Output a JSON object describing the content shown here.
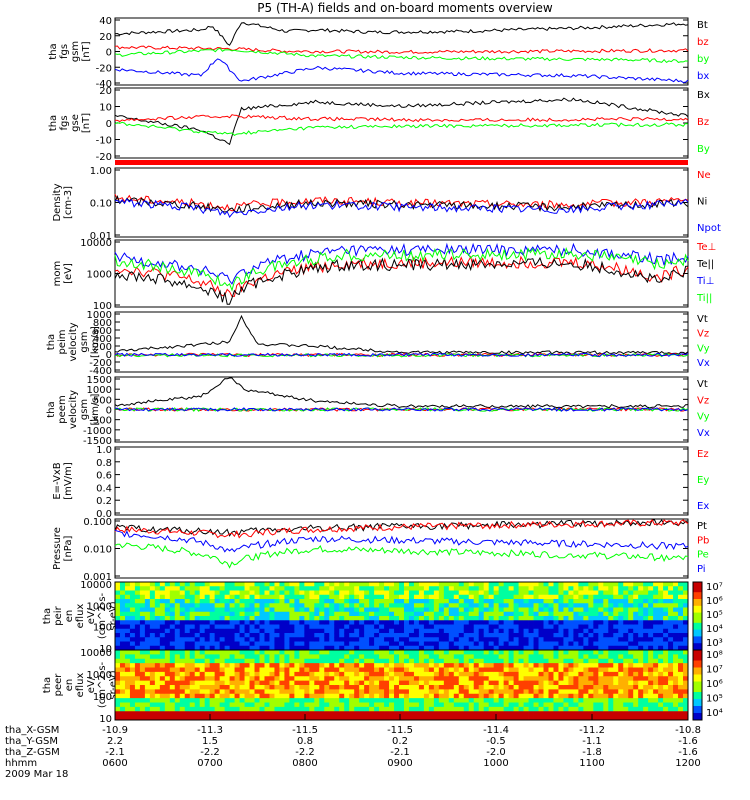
{
  "title": "P5 (TH-A) fields and on-board moments overview",
  "footer": {
    "rows": [
      {
        "label": "tha_X-GSM",
        "values": [
          "-10.9",
          "-11.3",
          "-11.5",
          "-11.5",
          "-11.4",
          "-11.2",
          "-10.8"
        ]
      },
      {
        "label": "tha_Y-GSM",
        "values": [
          "2.2",
          "1.5",
          "0.8",
          "0.2",
          "-0.5",
          "-1.1",
          "-1.6"
        ]
      },
      {
        "label": "tha_Z-GSM",
        "values": [
          "-2.1",
          "-2.2",
          "-2.2",
          "-2.1",
          "-2.0",
          "-1.8",
          "-1.6"
        ]
      },
      {
        "label": "hhmm",
        "values": [
          "0600",
          "0700",
          "0800",
          "0900",
          "1000",
          "1100",
          "1200"
        ]
      }
    ],
    "date": "2009 Mar 18"
  },
  "colors": {
    "black": "#000000",
    "red": "#ff0000",
    "green": "#00ff00",
    "blue": "#0000ff"
  },
  "chart_data": [
    {
      "type": "line",
      "ylabel": [
        "tha",
        "fgs",
        "gsm",
        "[nT]"
      ],
      "yticks": [
        "40",
        "20",
        "0",
        "-20",
        "-40"
      ],
      "ylim": [
        -40,
        45
      ],
      "series": [
        {
          "name": "Bt",
          "color": "#000000",
          "x": [
            0,
            0.15,
            0.17,
            0.2,
            0.22,
            0.3,
            0.35,
            0.45,
            0.6,
            0.8,
            0.9,
            1
          ],
          "y": [
            25,
            30,
            35,
            10,
            40,
            28,
            30,
            27,
            28,
            32,
            35,
            38
          ]
        },
        {
          "name": "bz",
          "color": "#ff0000",
          "x": [
            0,
            0.2,
            0.3,
            0.5,
            0.8,
            1
          ],
          "y": [
            8,
            6,
            3,
            2,
            3,
            4
          ]
        },
        {
          "name": "by",
          "color": "#00ff00",
          "x": [
            0,
            0.2,
            0.35,
            0.6,
            0.9,
            1
          ],
          "y": [
            -2,
            5,
            -3,
            -6,
            -8,
            -10
          ]
        },
        {
          "name": "bx",
          "color": "#0000ff",
          "x": [
            0,
            0.15,
            0.18,
            0.22,
            0.35,
            0.5,
            0.8,
            1
          ],
          "y": [
            -20,
            -28,
            -5,
            -35,
            -18,
            -25,
            -28,
            -35
          ]
        }
      ]
    },
    {
      "type": "line",
      "ylabel": [
        "tha",
        "fgs",
        "gse",
        "[nT]"
      ],
      "yticks": [
        "20",
        "10",
        "0",
        "-10",
        "-20"
      ],
      "ylim": [
        -25,
        25
      ],
      "series": [
        {
          "name": "Bx",
          "color": "#000000",
          "x": [
            0,
            0.15,
            0.2,
            0.22,
            0.35,
            0.5,
            0.8,
            1
          ],
          "y": [
            5,
            -5,
            -15,
            10,
            15,
            12,
            17,
            5
          ]
        },
        {
          "name": "Bz",
          "color": "#ff0000",
          "x": [
            0,
            0.2,
            0.35,
            0.6,
            1
          ],
          "y": [
            2,
            5,
            3,
            2,
            3
          ]
        },
        {
          "name": "By",
          "color": "#00ff00",
          "x": [
            0,
            0.2,
            0.35,
            0.6,
            1
          ],
          "y": [
            0,
            -8,
            -3,
            -2,
            -1
          ]
        }
      ]
    },
    {
      "type": "line",
      "ylabel": [
        "Density",
        "[cm-3]"
      ],
      "yticks": [
        "1.00",
        "0.10",
        "0.01"
      ],
      "log": true,
      "ylim": [
        0.01,
        10
      ],
      "series": [
        {
          "name": "Ne",
          "color": "#ff0000",
          "x": [
            0,
            0.2,
            0.35,
            0.5,
            0.8,
            1
          ],
          "y": [
            0.5,
            0.2,
            0.4,
            0.3,
            0.25,
            0.4
          ]
        },
        {
          "name": "Ni",
          "color": "#000000",
          "x": [
            0,
            0.2,
            0.35,
            0.5,
            0.8,
            1
          ],
          "y": [
            0.4,
            0.15,
            0.3,
            0.25,
            0.2,
            0.3
          ]
        },
        {
          "name": "Npot",
          "color": "#0000ff",
          "x": [
            0,
            0.2,
            0.35,
            0.5,
            0.8,
            1
          ],
          "y": [
            0.35,
            0.1,
            0.25,
            0.2,
            0.15,
            0.3
          ]
        }
      ]
    },
    {
      "type": "line",
      "ylabel": [
        "mom",
        "[eV]"
      ],
      "yticks": [
        "10000",
        "1000",
        "100"
      ],
      "log": true,
      "ylim": [
        100,
        10000
      ],
      "series": [
        {
          "name": "Te⊥",
          "color": "#ff0000",
          "x": [
            0,
            0.2,
            0.4,
            0.8,
            0.95,
            1
          ],
          "y": [
            1500,
            200,
            2000,
            2200,
            700,
            1400
          ]
        },
        {
          "name": "Te||",
          "color": "#000000",
          "x": [
            0,
            0.2,
            0.4,
            0.8,
            0.95,
            1
          ],
          "y": [
            1000,
            150,
            1800,
            2000,
            500,
            1200
          ]
        },
        {
          "name": "Ti⊥",
          "color": "#0000ff",
          "x": [
            0,
            0.2,
            0.4,
            0.8,
            0.95,
            1
          ],
          "y": [
            3000,
            600,
            5000,
            5000,
            2500,
            3000
          ]
        },
        {
          "name": "Ti||",
          "color": "#00ff00",
          "x": [
            0,
            0.2,
            0.4,
            0.8,
            0.95,
            1
          ],
          "y": [
            2500,
            400,
            3500,
            3800,
            1800,
            2500
          ]
        }
      ]
    },
    {
      "type": "line",
      "ylabel": [
        "tha",
        "peim",
        "velocity",
        "gsm",
        "[km/s]"
      ],
      "yticks": [
        "1000",
        "800",
        "600",
        "400",
        "200",
        "0",
        "-200",
        "-400"
      ],
      "ylim": [
        -400,
        1000
      ],
      "series": [
        {
          "name": "Vt",
          "color": "#000000",
          "x": [
            0,
            0.2,
            0.22,
            0.25,
            0.35,
            0.5,
            1
          ],
          "y": [
            80,
            300,
            900,
            250,
            200,
            60,
            50
          ]
        },
        {
          "name": "Vz",
          "color": "#ff0000",
          "x": [
            0,
            0.5,
            1
          ],
          "y": [
            0,
            0,
            0
          ]
        },
        {
          "name": "Vy",
          "color": "#00ff00",
          "x": [
            0,
            0.5,
            1
          ],
          "y": [
            -10,
            -10,
            -10
          ]
        },
        {
          "name": "Vx",
          "color": "#0000ff",
          "x": [
            0,
            0.5,
            1
          ],
          "y": [
            0,
            0,
            0
          ]
        }
      ]
    },
    {
      "type": "line",
      "ylabel": [
        "tha",
        "peem",
        "velocity",
        "gsm",
        "[km/s]"
      ],
      "yticks": [
        "1500",
        "1000",
        "500",
        "0",
        "-500",
        "-1000",
        "-1500"
      ],
      "ylim": [
        -1500,
        1500
      ],
      "series": [
        {
          "name": "Vt",
          "color": "#000000",
          "x": [
            0,
            0.15,
            0.2,
            0.23,
            0.35,
            0.5,
            1
          ],
          "y": [
            200,
            600,
            1500,
            900,
            400,
            150,
            150
          ]
        },
        {
          "name": "Vz",
          "color": "#ff0000",
          "x": [
            0,
            1
          ],
          "y": [
            0,
            0
          ]
        },
        {
          "name": "Vy",
          "color": "#00ff00",
          "x": [
            0,
            1
          ],
          "y": [
            0,
            0
          ]
        },
        {
          "name": "Vx",
          "color": "#0000ff",
          "x": [
            0,
            1
          ],
          "y": [
            0,
            0
          ]
        }
      ]
    },
    {
      "type": "line",
      "ylabel": [
        "E=-VxB",
        "[mV/m]"
      ],
      "yticks": [
        "1.0",
        "0.8",
        "0.6",
        "0.4",
        "0.2",
        "0.0"
      ],
      "ylim": [
        0,
        1
      ],
      "series": [
        {
          "name": "Ez",
          "color": "#ff0000",
          "x": [],
          "y": []
        },
        {
          "name": "Ey",
          "color": "#00ff00",
          "x": [],
          "y": []
        },
        {
          "name": "Ex",
          "color": "#0000ff",
          "x": [],
          "y": []
        }
      ]
    },
    {
      "type": "line",
      "ylabel": [
        "Pressure",
        "[nPa]"
      ],
      "yticks": [
        "0.100",
        "0.010",
        "0.001"
      ],
      "log": true,
      "ylim": [
        0.001,
        1
      ],
      "series": [
        {
          "name": "Pt",
          "color": "#000000",
          "x": [
            0,
            0.2,
            0.35,
            0.6,
            1
          ],
          "y": [
            0.35,
            0.2,
            0.35,
            0.45,
            0.7
          ]
        },
        {
          "name": "Pb",
          "color": "#ff0000",
          "x": [
            0,
            0.2,
            0.35,
            0.6,
            1
          ],
          "y": [
            0.3,
            0.15,
            0.3,
            0.45,
            0.65
          ]
        },
        {
          "name": "Pe",
          "color": "#00ff00",
          "x": [
            0,
            0.2,
            0.35,
            0.6,
            1
          ],
          "y": [
            0.05,
            0.005,
            0.03,
            0.02,
            0.01
          ]
        },
        {
          "name": "Pi",
          "color": "#0000ff",
          "x": [
            0,
            0.2,
            0.35,
            0.6,
            1
          ],
          "y": [
            0.2,
            0.02,
            0.1,
            0.07,
            0.04
          ]
        }
      ]
    },
    {
      "type": "heatmap",
      "ylabel": [
        "tha",
        "peir",
        "en",
        "eflux",
        "eV/",
        "(cm^2-s-",
        "sr-eV)"
      ],
      "yticks": [
        "10000",
        "1000",
        "100",
        "10"
      ],
      "colorbar": [
        "10⁷",
        "10⁶",
        "10⁵",
        "10⁴",
        "10³"
      ]
    },
    {
      "type": "heatmap",
      "ylabel": [
        "tha",
        "peer",
        "en",
        "eflux",
        "eV/",
        "(cm^2-s-",
        "sr-eV)"
      ],
      "yticks": [
        "10000",
        "1000",
        "100",
        "10"
      ],
      "colorbar": [
        "10⁸",
        "10⁷",
        "10⁶",
        "10⁵",
        "10⁴"
      ]
    }
  ]
}
